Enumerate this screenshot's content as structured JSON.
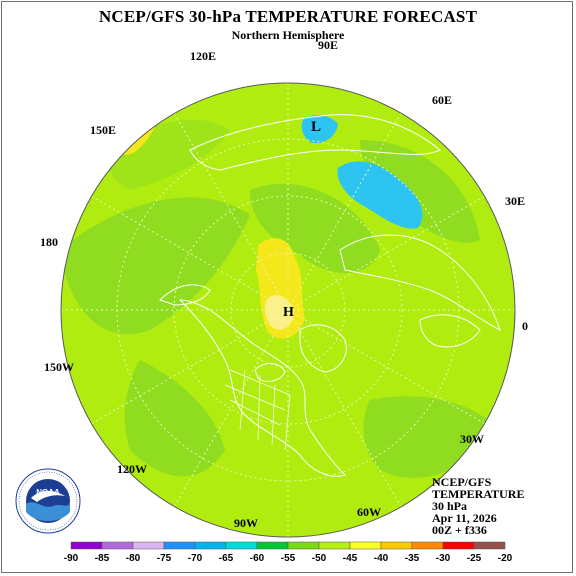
{
  "title": "NCEP/GFS 30-hPa TEMPERATURE FORECAST",
  "subtitle": "Northern Hemisphere",
  "longitude_labels": [
    "90E",
    "120E",
    "60E",
    "150E",
    "30E",
    "180",
    "0",
    "150W",
    "30W",
    "120W",
    "90W",
    "60W"
  ],
  "pressure_labels": [
    "L",
    "H"
  ],
  "info": {
    "line1": "NCEP/GFS",
    "line2": "TEMPERATURE",
    "line3": "30 hPa",
    "line4": "Apr 11, 2026",
    "line5": "00Z + f336"
  },
  "logo_text": "NOAA",
  "color_scale": {
    "labels": [
      "-90",
      "-85",
      "-80",
      "-75",
      "-70",
      "-65",
      "-60",
      "-55",
      "-50",
      "-45",
      "-40",
      "-35",
      "-30",
      "-25",
      "-20"
    ],
    "colors": [
      "#9400d3",
      "#b169e0",
      "#dcb4f0",
      "#1e90ff",
      "#00b4f0",
      "#00dcdc",
      "#00c832",
      "#78dc14",
      "#b4f014",
      "#ffff28",
      "#ffc800",
      "#ff8c00",
      "#ff0000",
      "#96504b",
      "#969696"
    ]
  },
  "map_colors": {
    "background": "#b0ec10",
    "warm": "#f4e81a",
    "warmer": "#fbe33a",
    "cool": "#8fdc20",
    "cold": "#2ec4f2",
    "coast": "#ffffff"
  }
}
